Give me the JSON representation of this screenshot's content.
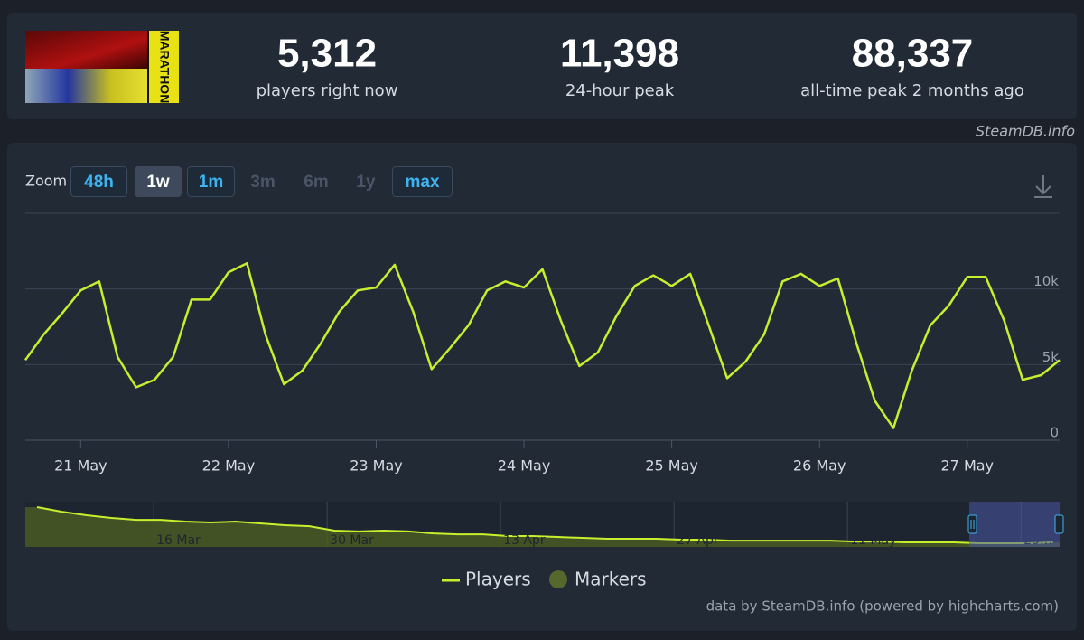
{
  "header": {
    "logo": "MARATHON",
    "stats": [
      {
        "value": "5,312",
        "label": "players right now"
      },
      {
        "value": "11,398",
        "label": "24-hour peak"
      },
      {
        "value": "88,337",
        "label": "all-time peak 2 months ago"
      }
    ],
    "source": "SteamDB.info"
  },
  "zoom": {
    "label": "Zoom",
    "buttons": [
      {
        "text": "48h",
        "state": "enabled"
      },
      {
        "text": "1w",
        "state": "active"
      },
      {
        "text": "1m",
        "state": "enabled"
      },
      {
        "text": "3m",
        "state": "disabled"
      },
      {
        "text": "6m",
        "state": "disabled"
      },
      {
        "text": "1y",
        "state": "disabled"
      },
      {
        "text": "max",
        "state": "enabled"
      }
    ]
  },
  "chart_data": [
    {
      "type": "line",
      "categories": [
        null,
        null,
        null,
        "21 May",
        null,
        null,
        null,
        null,
        null,
        null,
        null,
        "22 May",
        null,
        null,
        null,
        null,
        null,
        null,
        null,
        "23 May",
        null,
        null,
        null,
        null,
        null,
        null,
        null,
        "24 May",
        null,
        null,
        null,
        null,
        null,
        null,
        null,
        "25 May",
        null,
        null,
        null,
        null,
        null,
        null,
        null,
        "26 May",
        null,
        null,
        null,
        null,
        null,
        null,
        null,
        "27 May",
        null,
        null,
        null,
        null,
        null
      ],
      "series": [
        {
          "name": "Players",
          "color": "#c8ef2e",
          "values": [
            5300,
            7000,
            8400,
            9900,
            10500,
            5500,
            3500,
            4000,
            5500,
            9300,
            9300,
            11100,
            11700,
            7000,
            3700,
            4600,
            6400,
            8500,
            9900,
            10100,
            11600,
            8500,
            4700,
            6100,
            7600,
            9900,
            10500,
            10100,
            11300,
            7900,
            4900,
            5800,
            8200,
            10200,
            10900,
            10200,
            11000,
            7600,
            4100,
            5200,
            7000,
            10500,
            11000,
            10200,
            10700,
            6400,
            2600,
            800,
            4600,
            7600,
            8900,
            10800,
            10800,
            7900,
            4000,
            4300,
            5300
          ]
        }
      ],
      "markers": {
        "name": "Markers",
        "color": "#56682b"
      },
      "ylim": [
        0,
        15000
      ],
      "yticks": [
        0,
        {
          "value": 5000,
          "label": "5k"
        },
        {
          "value": 10000,
          "label": "10k"
        }
      ],
      "grid": true
    },
    {
      "type": "area",
      "categories": [
        null,
        null,
        null,
        null,
        null,
        "16 Mar",
        null,
        null,
        null,
        null,
        null,
        null,
        "30 Mar",
        null,
        null,
        null,
        null,
        null,
        null,
        "13 Apr",
        null,
        null,
        null,
        null,
        null,
        null,
        "27 Apr",
        null,
        null,
        null,
        null,
        null,
        null,
        "11 May",
        null,
        null,
        null,
        null,
        null,
        null,
        "25…",
        null
      ],
      "series": [
        {
          "name": "Players",
          "color": "#c8ef2e",
          "values": [
            82500,
            73000,
            65600,
            60000,
            56000,
            56000,
            52500,
            50600,
            52500,
            48800,
            45000,
            43000,
            33800,
            32000,
            33800,
            32000,
            28000,
            26000,
            26000,
            22500,
            22500,
            20600,
            18800,
            16900,
            16900,
            16900,
            15000,
            15000,
            13000,
            13000,
            13000,
            13000,
            13000,
            11000,
            11000,
            9400,
            9400,
            9400,
            7500,
            7500,
            7500,
            9400
          ]
        }
      ],
      "ylim": [
        0,
        90000
      ]
    }
  ],
  "credit": "data by SteamDB.info (powered by highcharts.com)"
}
